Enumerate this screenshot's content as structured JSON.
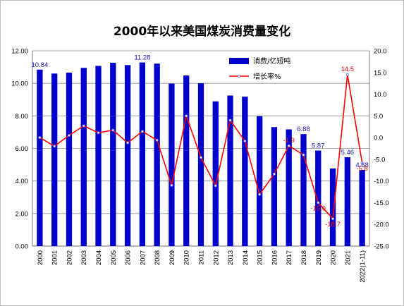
{
  "chart_data": {
    "type": "bar",
    "title": "2000年以来美国煤炭消费量变化",
    "categories": [
      "2000",
      "2001",
      "2002",
      "2003",
      "2004",
      "2005",
      "2006",
      "2007",
      "2008",
      "2009",
      "2010",
      "2011",
      "2012",
      "2013",
      "2014",
      "2015",
      "2016",
      "2017",
      "2018",
      "2019",
      "2020",
      "2021",
      "2022(1-11)"
    ],
    "series": [
      {
        "name": "消费/亿短吨",
        "type": "bar",
        "axis": "left",
        "color": "#0000cc",
        "values": [
          10.84,
          10.6,
          10.66,
          10.95,
          11.07,
          11.26,
          11.12,
          11.28,
          11.21,
          9.98,
          10.48,
          10.0,
          8.89,
          9.25,
          9.18,
          7.98,
          7.31,
          7.17,
          6.88,
          5.87,
          4.77,
          5.46,
          4.68
        ]
      },
      {
        "name": "增长率%",
        "type": "line",
        "axis": "right",
        "color": "#ff0000",
        "values": [
          0.0,
          -2.0,
          0.5,
          2.7,
          1.1,
          1.7,
          -1.2,
          1.4,
          -0.6,
          -11.0,
          5.0,
          -4.6,
          -11.1,
          4.0,
          -0.8,
          -13.1,
          -8.4,
          -1.9,
          -4.0,
          -15.0,
          -18.7,
          14.5,
          -5.8
        ]
      }
    ],
    "bar_data_labels": [
      {
        "category": "2000",
        "text": "10.84"
      },
      {
        "category": "2007",
        "text": "11.28"
      },
      {
        "category": "2018",
        "text": "6.88"
      },
      {
        "category": "2019",
        "text": "5.87"
      },
      {
        "category": "2021",
        "text": "5.46"
      },
      {
        "category": "2022(1-11)",
        "text": "4.68"
      }
    ],
    "line_data_labels": [
      {
        "category": "2017",
        "text": "-1.9"
      },
      {
        "category": "2019",
        "text": "-15.0"
      },
      {
        "category": "2020",
        "text": "-18.7"
      },
      {
        "category": "2021",
        "text": "14.5"
      },
      {
        "category": "2022(1-11)",
        "text": "-5.8"
      }
    ],
    "y_left": {
      "min": 0,
      "max": 12,
      "step": 2,
      "tick_labels": [
        "0.00",
        "2.00",
        "4.00",
        "6.00",
        "8.00",
        "10.00",
        "12.00"
      ]
    },
    "y_right": {
      "min": -25,
      "max": 20,
      "step": 5,
      "tick_labels": [
        "-25.0",
        "-20.0",
        "-15.0",
        "-10.0",
        "-5.0",
        "0.0",
        "5.0",
        "10.0",
        "15.0",
        "20.0"
      ]
    },
    "grid": true,
    "legend_position": "top-right"
  }
}
